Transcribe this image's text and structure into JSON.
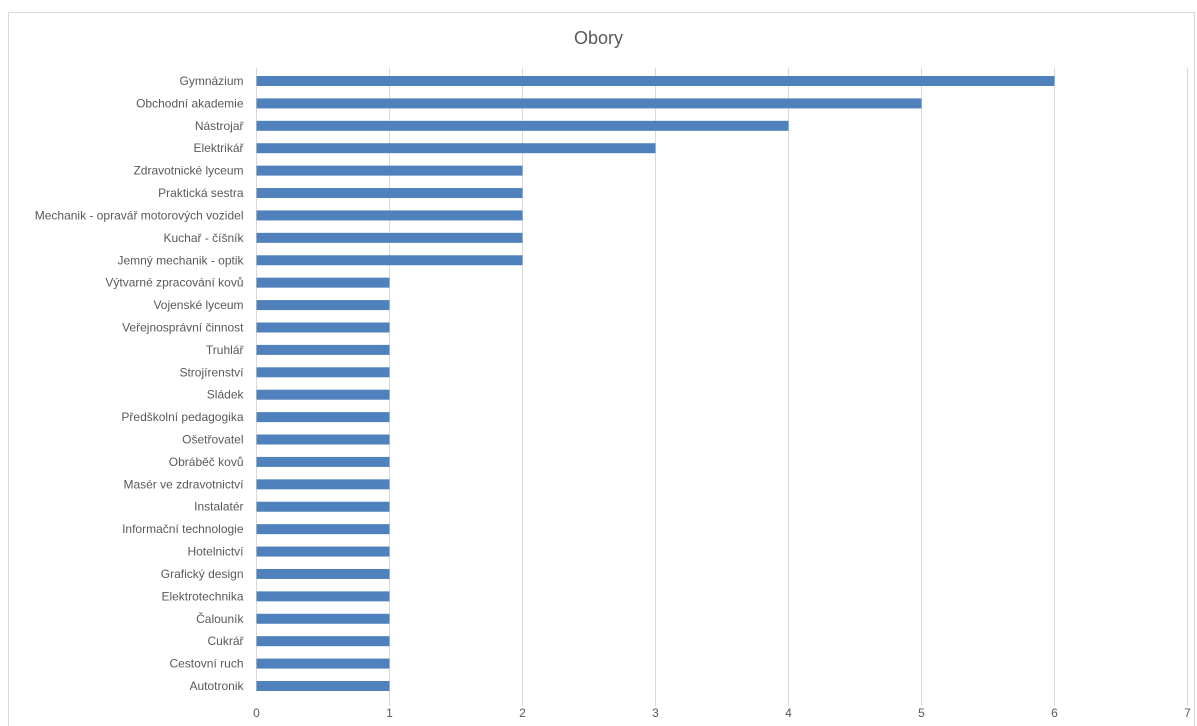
{
  "chart_data": {
    "type": "bar",
    "orientation": "horizontal",
    "title": "Obory",
    "xlabel": "",
    "ylabel": "",
    "xlim": [
      0,
      7
    ],
    "x_ticks": [
      0,
      1,
      2,
      3,
      4,
      5,
      6,
      7
    ],
    "grid": "vertical",
    "legend": "none",
    "bar_color": "#4f81bd",
    "categories": [
      "Gymnázium",
      "Obchodní akademie",
      "Nástrojař",
      "Elektrikář",
      "Zdravotnické lyceum",
      "Praktická sestra",
      "Mechanik - opravář motorových vozidel",
      "Kuchař - číšník",
      "Jemný mechanik - optik",
      "Výtvarné zpracování kovů",
      "Vojenské lyceum",
      "Veřejnosprávní činnost",
      "Truhlář",
      "Strojírenství",
      "Sládek",
      "Předškolní pedagogika",
      "Ošetřovatel",
      "Obráběč kovů",
      "Masér ve zdravotnictví",
      "Instalatér",
      "Informační technologie",
      "Hotelnictví",
      "Grafický design",
      "Elektrotechnika",
      "Čalouník",
      "Cukrář",
      "Cestovní ruch",
      "Autotronik"
    ],
    "values": [
      6,
      5,
      4,
      3,
      2,
      2,
      2,
      2,
      2,
      1,
      1,
      1,
      1,
      1,
      1,
      1,
      1,
      1,
      1,
      1,
      1,
      1,
      1,
      1,
      1,
      1,
      1,
      1
    ]
  }
}
